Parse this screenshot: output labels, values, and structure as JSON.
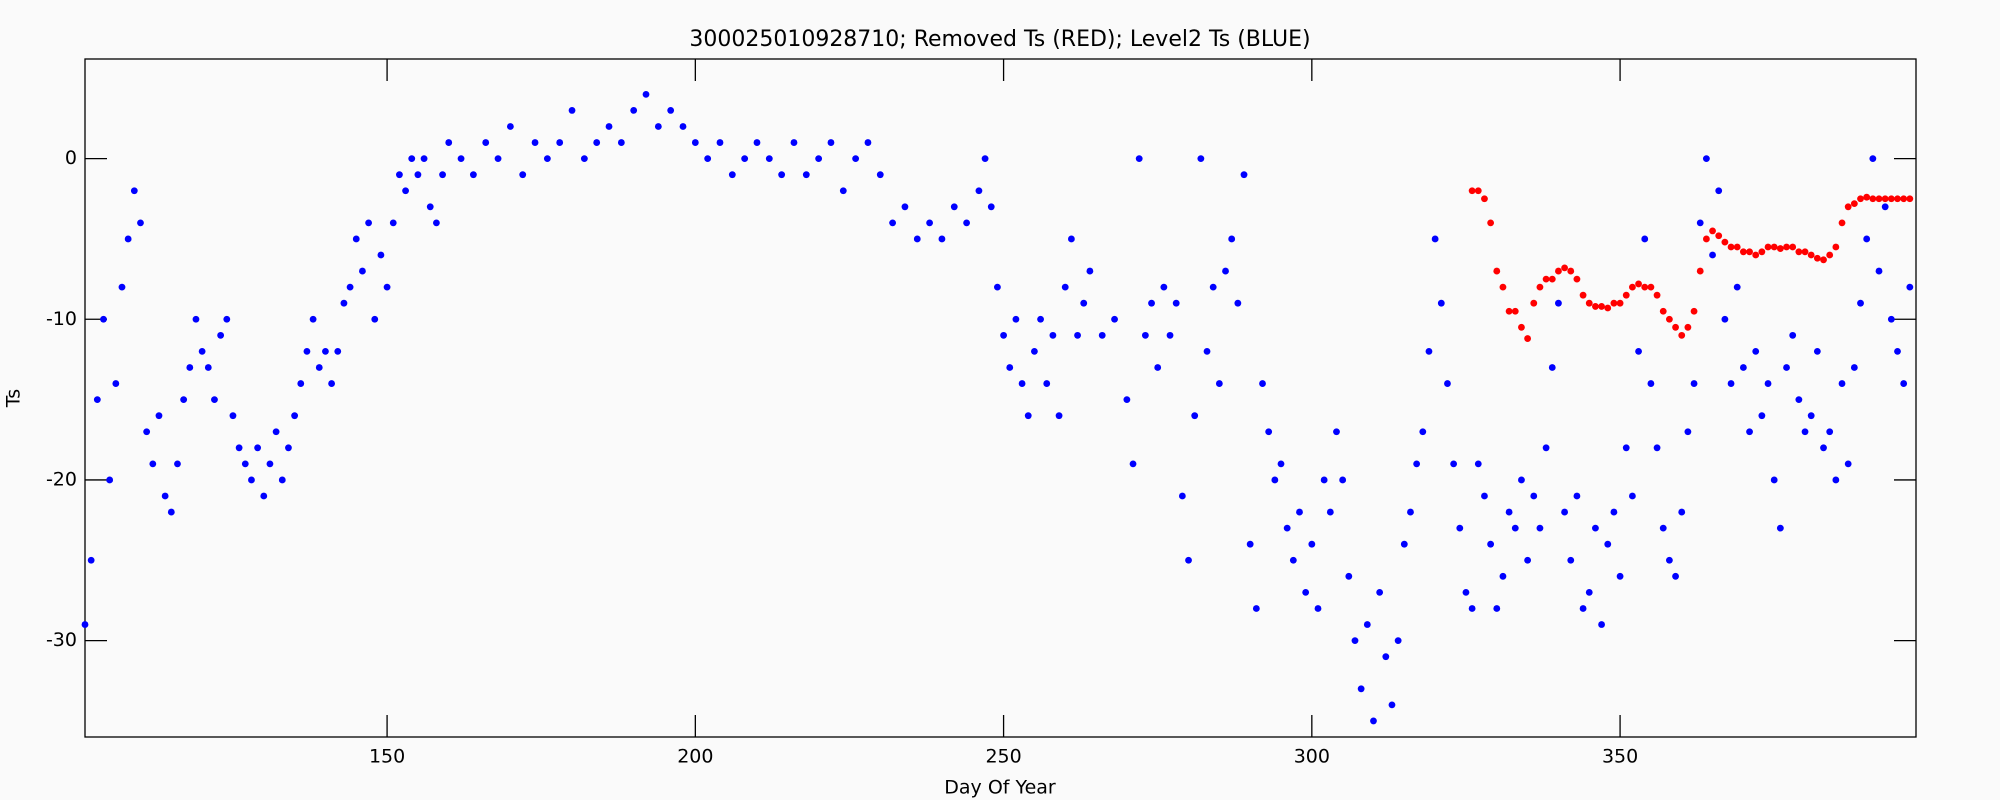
{
  "chart_data": {
    "type": "scatter",
    "title": "300025010928710; Removed Ts (RED); Level2 Ts (BLUE)",
    "xlabel": "Day Of Year",
    "ylabel": "Ts",
    "xlim": [
      101,
      398
    ],
    "ylim": [
      -36,
      6.2
    ],
    "xticks": [
      150,
      200,
      250,
      300,
      350
    ],
    "yticks": [
      0,
      -10,
      -20,
      -30
    ],
    "series": [
      {
        "color": "#0000ff",
        "x": [
          101,
          102,
          103,
          104,
          105,
          106,
          107,
          108,
          109,
          110,
          111,
          112,
          113,
          114,
          115,
          116,
          117,
          118,
          119,
          120,
          121,
          122,
          123,
          124,
          125,
          126,
          127,
          128,
          129,
          130,
          131,
          132,
          133,
          134,
          135,
          136,
          137,
          138,
          139,
          140,
          141,
          142,
          143,
          144,
          145,
          146,
          147,
          148,
          149,
          150,
          151,
          152,
          153,
          154,
          155,
          156,
          157,
          158,
          159,
          160,
          162,
          164,
          166,
          168,
          170,
          172,
          174,
          176,
          178,
          180,
          182,
          184,
          186,
          188,
          190,
          192,
          194,
          196,
          198,
          200,
          202,
          204,
          206,
          208,
          210,
          212,
          214,
          216,
          218,
          220,
          222,
          224,
          226,
          228,
          230,
          232,
          234,
          236,
          238,
          240,
          242,
          244,
          246,
          247,
          248,
          249,
          250,
          251,
          252,
          253,
          254,
          255,
          256,
          257,
          258,
          259,
          260,
          261,
          262,
          263,
          264,
          266,
          268,
          270,
          271,
          272,
          273,
          274,
          275,
          276,
          277,
          278,
          279,
          280,
          281,
          282,
          283,
          284,
          285,
          286,
          287,
          288,
          289,
          290,
          291,
          292,
          293,
          294,
          295,
          296,
          297,
          298,
          299,
          300,
          301,
          302,
          303,
          304,
          305,
          306,
          307,
          308,
          309,
          310,
          311,
          312,
          313,
          314,
          315,
          316,
          317,
          318,
          319,
          320,
          321,
          322,
          323,
          324,
          325,
          326,
          327,
          328,
          329,
          330,
          331,
          332,
          333,
          334,
          335,
          336,
          337,
          338,
          339,
          340,
          341,
          342,
          343,
          344,
          345,
          346,
          347,
          348,
          349,
          350,
          351,
          352,
          353,
          354,
          355,
          356,
          357,
          358,
          359,
          360,
          361,
          362,
          363,
          364,
          365,
          366,
          367,
          368,
          369,
          370,
          371,
          372,
          373,
          374,
          375,
          376,
          377,
          378,
          379,
          380,
          381,
          382,
          383,
          384,
          385,
          386,
          387,
          388,
          389,
          390,
          391,
          392,
          393,
          394,
          395,
          396,
          397
        ],
        "values": [
          -29,
          -25,
          -15,
          -10,
          -20,
          -14,
          -8,
          -5,
          -2,
          -4,
          -17,
          -19,
          -16,
          -21,
          -22,
          -19,
          -15,
          -13,
          -10,
          -12,
          -13,
          -15,
          -11,
          -10,
          -16,
          -18,
          -19,
          -20,
          -18,
          -21,
          -19,
          -17,
          -20,
          -18,
          -16,
          -14,
          -12,
          -10,
          -13,
          -12,
          -14,
          -12,
          -9,
          -8,
          -5,
          -7,
          -4,
          -10,
          -6,
          -8,
          -4,
          -1,
          -2,
          0,
          -1,
          0,
          -3,
          -4,
          -1,
          1,
          0,
          -1,
          1,
          0,
          2,
          -1,
          1,
          0,
          1,
          3,
          0,
          1,
          2,
          1,
          3,
          4,
          2,
          3,
          2,
          1,
          0,
          1,
          -1,
          0,
          1,
          0,
          -1,
          1,
          -1,
          0,
          1,
          -2,
          0,
          1,
          -1,
          -4,
          -3,
          -5,
          -4,
          -5,
          -3,
          -4,
          -2,
          0,
          -3,
          -8,
          -11,
          -13,
          -10,
          -14,
          -16,
          -12,
          -10,
          -14,
          -11,
          -16,
          -8,
          -5,
          -11,
          -9,
          -7,
          -11,
          -10,
          -15,
          -19,
          0,
          -11,
          -9,
          -13,
          -8,
          -11,
          -9,
          -21,
          -25,
          -16,
          0,
          -12,
          -8,
          -14,
          -7,
          -5,
          -9,
          -1,
          -24,
          -28,
          -14,
          -17,
          -20,
          -19,
          -23,
          -25,
          -22,
          -27,
          -24,
          -28,
          -20,
          -22,
          -17,
          -20,
          -26,
          -30,
          -33,
          -29,
          -35,
          -27,
          -31,
          -34,
          -30,
          -24,
          -22,
          -19,
          -17,
          -12,
          -5,
          -9,
          -14,
          -19,
          -23,
          -27,
          -28,
          -19,
          -21,
          -24,
          -28,
          -26,
          -22,
          -23,
          -20,
          -25,
          -21,
          -23,
          -18,
          -13,
          -9,
          -22,
          -25,
          -21,
          -28,
          -27,
          -23,
          -29,
          -24,
          -22,
          -26,
          -18,
          -21,
          -12,
          -5,
          -14,
          -18,
          -23,
          -25,
          -26,
          -22,
          -17,
          -14,
          -4,
          0,
          -6,
          -2,
          -10,
          -14,
          -8,
          -13,
          -17,
          -12,
          -16,
          -14,
          -20,
          -23,
          -13,
          -11,
          -15,
          -17,
          -16,
          -12,
          -18,
          -17,
          -20,
          -14,
          -19,
          -13,
          -9,
          -5,
          0,
          -7,
          -3,
          -10,
          -12,
          -14,
          -8
        ]
      },
      {
        "color": "#ff0000",
        "x": [
          326,
          327,
          328,
          329,
          330,
          331,
          332,
          333,
          334,
          335,
          336,
          337,
          338,
          339,
          340,
          341,
          342,
          343,
          344,
          345,
          346,
          347,
          348,
          349,
          350,
          351,
          352,
          353,
          354,
          355,
          356,
          357,
          358,
          359,
          360,
          361,
          362,
          363,
          364,
          365,
          366,
          367,
          368,
          369,
          370,
          371,
          372,
          373,
          374,
          375,
          376,
          377,
          378,
          379,
          380,
          381,
          382,
          383,
          384,
          385,
          386,
          387,
          388,
          389,
          390,
          391,
          392,
          393,
          394,
          395,
          396,
          397
        ],
        "values": [
          -2,
          -2,
          -2.5,
          -4,
          -7,
          -8,
          -9.5,
          -9.5,
          -10.5,
          -11.2,
          -9,
          -8,
          -7.5,
          -7.5,
          -7,
          -6.8,
          -7,
          -7.5,
          -8.5,
          -9,
          -9.2,
          -9.2,
          -9.3,
          -9,
          -9,
          -8.5,
          -8,
          -7.8,
          -8,
          -8,
          -8.5,
          -9.5,
          -10,
          -10.5,
          -11,
          -10.5,
          -9.5,
          -7,
          -5,
          -4.5,
          -4.8,
          -5.2,
          -5.5,
          -5.5,
          -5.8,
          -5.8,
          -6,
          -5.8,
          -5.5,
          -5.5,
          -5.6,
          -5.5,
          -5.5,
          -5.8,
          -5.8,
          -6,
          -6.2,
          -6.3,
          -6,
          -5.5,
          -4,
          -3,
          -2.8,
          -2.5,
          -2.4,
          -2.5,
          -2.5,
          -2.5,
          -2.5,
          -2.5,
          -2.5,
          -2.5
        ]
      }
    ]
  }
}
